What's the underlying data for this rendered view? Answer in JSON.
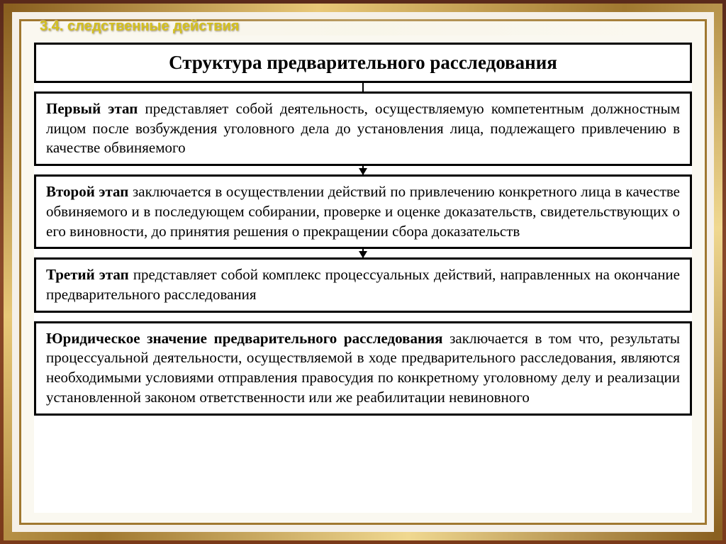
{
  "header": {
    "section_number": "3.4.",
    "section_title": "следственные действия"
  },
  "diagram": {
    "type": "flowchart",
    "title": "Структура предварительного расследования",
    "title_fontsize": 27,
    "box_fontsize": 21,
    "font_family": "Times New Roman",
    "border_color": "#000000",
    "border_width": 3,
    "background_color": "#ffffff",
    "stages": [
      {
        "label": "Первый этап",
        "text": "представляет собой деятельность, осуществляемую компетентным должностным лицом после возбуждения уголовного дела до установления лица, подлежащего привлечению в качестве обвиняемого",
        "arrow_after": true
      },
      {
        "label": "Второй этап",
        "text": "заключается в осуществлении действий по привлечению конкретного лица в качестве обвиняемого и в последующем собирании, проверке и оценке доказательств, свидетельствующих о его виновности, до принятия решения о прекращении сбора доказательств",
        "arrow_after": true
      },
      {
        "label": "Третий этап",
        "text": "представляет собой комплекс процессуальных действий, направленных на окончание предварительного расследования",
        "arrow_after": false
      }
    ],
    "footer": {
      "label": "Юридическое значение предварительного расследования",
      "text": "заключается в том что, результаты процессуальной деятельности, осуществляемой в ходе предварительного расследования, являются необходимыми условиями отправления правосудия по конкретному уголовному делу и реализации установленной законом ответственности или же реабилитации невиновного"
    }
  },
  "colors": {
    "frame_dark": "#5a2a1a",
    "frame_mid": "#8b4a2a",
    "gold_dark": "#8a6020",
    "gold_light": "#e8c878",
    "header_text": "#d4c020",
    "page_bg": "#faf8f0"
  }
}
